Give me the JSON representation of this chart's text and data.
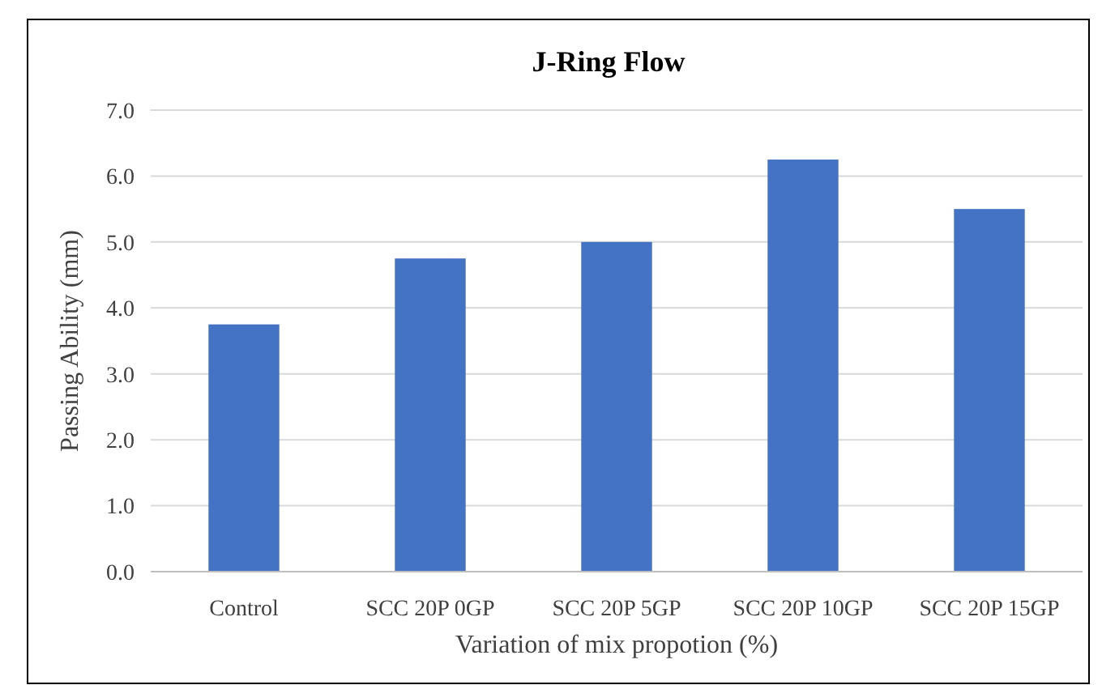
{
  "chart_data": {
    "type": "bar",
    "title": "J-Ring Flow",
    "xlabel": "Variation of mix propotion (%)",
    "ylabel": "Passing Ability (mm)",
    "categories": [
      "Control",
      "SCC 20P 0GP",
      "SCC 20P 5GP",
      "SCC 20P 10GP",
      "SCC 20P 15GP"
    ],
    "values": [
      3.75,
      4.75,
      5.0,
      6.25,
      5.5
    ],
    "color": "#4472c4",
    "ylim": [
      0,
      7
    ],
    "yticks": [
      {
        "value": 0,
        "label": "0.0"
      },
      {
        "value": 1,
        "label": "1.0"
      },
      {
        "value": 2,
        "label": "2.0"
      },
      {
        "value": 3,
        "label": "3.0"
      },
      {
        "value": 4,
        "label": "4.0"
      },
      {
        "value": 5,
        "label": "5.0"
      },
      {
        "value": 6,
        "label": "6.0"
      },
      {
        "value": 7,
        "label": "7.0"
      }
    ],
    "grid": "y"
  }
}
